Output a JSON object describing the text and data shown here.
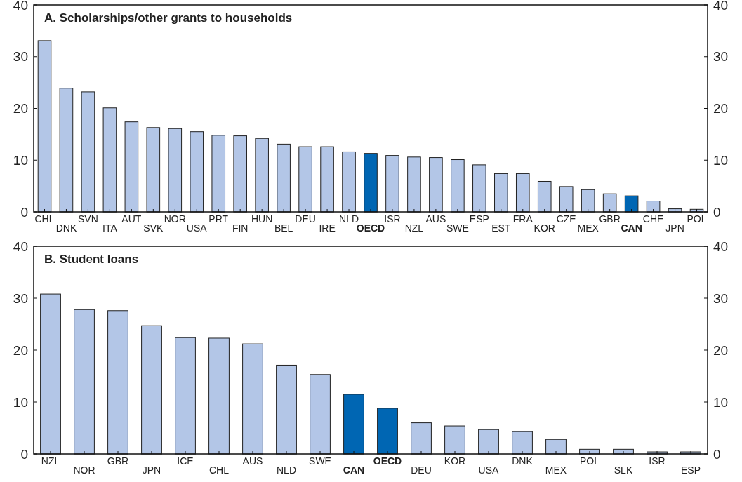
{
  "chart_data": [
    {
      "type": "bar",
      "title": "A. Scholarships/other grants to households",
      "categories": [
        "CHL",
        "DNK",
        "SVN",
        "ITA",
        "AUT",
        "SVK",
        "NOR",
        "USA",
        "PRT",
        "FIN",
        "HUN",
        "BEL",
        "DEU",
        "IRE",
        "NLD",
        "OECD",
        "ISR",
        "NZL",
        "AUS",
        "SWE",
        "ESP",
        "EST",
        "FRA",
        "KOR",
        "CZE",
        "MEX",
        "GBR",
        "CAN",
        "CHE",
        "JPN",
        "POL"
      ],
      "values": [
        33.1,
        23.9,
        23.2,
        20.1,
        17.4,
        16.3,
        16.1,
        15.5,
        14.8,
        14.7,
        14.2,
        13.1,
        12.6,
        12.6,
        11.6,
        11.3,
        10.9,
        10.6,
        10.5,
        10.1,
        9.1,
        7.4,
        7.4,
        5.9,
        4.9,
        4.3,
        3.5,
        3.1,
        2.1,
        0.6,
        0.5
      ],
      "colors": [
        "#b3c6e7",
        "#b3c6e7",
        "#b3c6e7",
        "#b3c6e7",
        "#b3c6e7",
        "#b3c6e7",
        "#b3c6e7",
        "#b3c6e7",
        "#b3c6e7",
        "#b3c6e7",
        "#b3c6e7",
        "#b3c6e7",
        "#b3c6e7",
        "#b3c6e7",
        "#b3c6e7",
        "#0066b3",
        "#b3c6e7",
        "#b3c6e7",
        "#b3c6e7",
        "#b3c6e7",
        "#b3c6e7",
        "#b3c6e7",
        "#b3c6e7",
        "#b3c6e7",
        "#b3c6e7",
        "#b3c6e7",
        "#b3c6e7",
        "#0066b3",
        "#b3c6e7",
        "#b3c6e7",
        "#b3c6e7"
      ],
      "ylim": [
        0,
        40
      ],
      "yticks": [
        0,
        10,
        20,
        30,
        40
      ],
      "y2lim": [
        0,
        40
      ],
      "y2ticks": [
        0,
        10,
        20,
        30,
        40
      ]
    },
    {
      "type": "bar",
      "title": "B. Student loans",
      "categories": [
        "NZL",
        "NOR",
        "GBR",
        "JPN",
        "ICE",
        "CHL",
        "AUS",
        "NLD",
        "SWE",
        "CAN",
        "OECD",
        "DEU",
        "KOR",
        "USA",
        "DNK",
        "MEX",
        "POL",
        "SLK",
        "ISR",
        "ESP"
      ],
      "values": [
        30.8,
        27.8,
        27.6,
        24.7,
        22.4,
        22.3,
        21.2,
        17.1,
        15.3,
        11.5,
        8.8,
        6.0,
        5.4,
        4.7,
        4.3,
        2.8,
        0.9,
        0.9,
        0.4,
        0.4
      ],
      "colors": [
        "#b3c6e7",
        "#b3c6e7",
        "#b3c6e7",
        "#b3c6e7",
        "#b3c6e7",
        "#b3c6e7",
        "#b3c6e7",
        "#b3c6e7",
        "#b3c6e7",
        "#0066b3",
        "#0066b3",
        "#b3c6e7",
        "#b3c6e7",
        "#b3c6e7",
        "#b3c6e7",
        "#b3c6e7",
        "#b3c6e7",
        "#b3c6e7",
        "#b3c6e7",
        "#b3c6e7"
      ],
      "ylim": [
        0,
        40
      ],
      "yticks": [
        0,
        10,
        20,
        30,
        40
      ],
      "y2lim": [
        0,
        40
      ],
      "y2ticks": [
        0,
        10,
        20,
        30,
        40
      ]
    }
  ]
}
